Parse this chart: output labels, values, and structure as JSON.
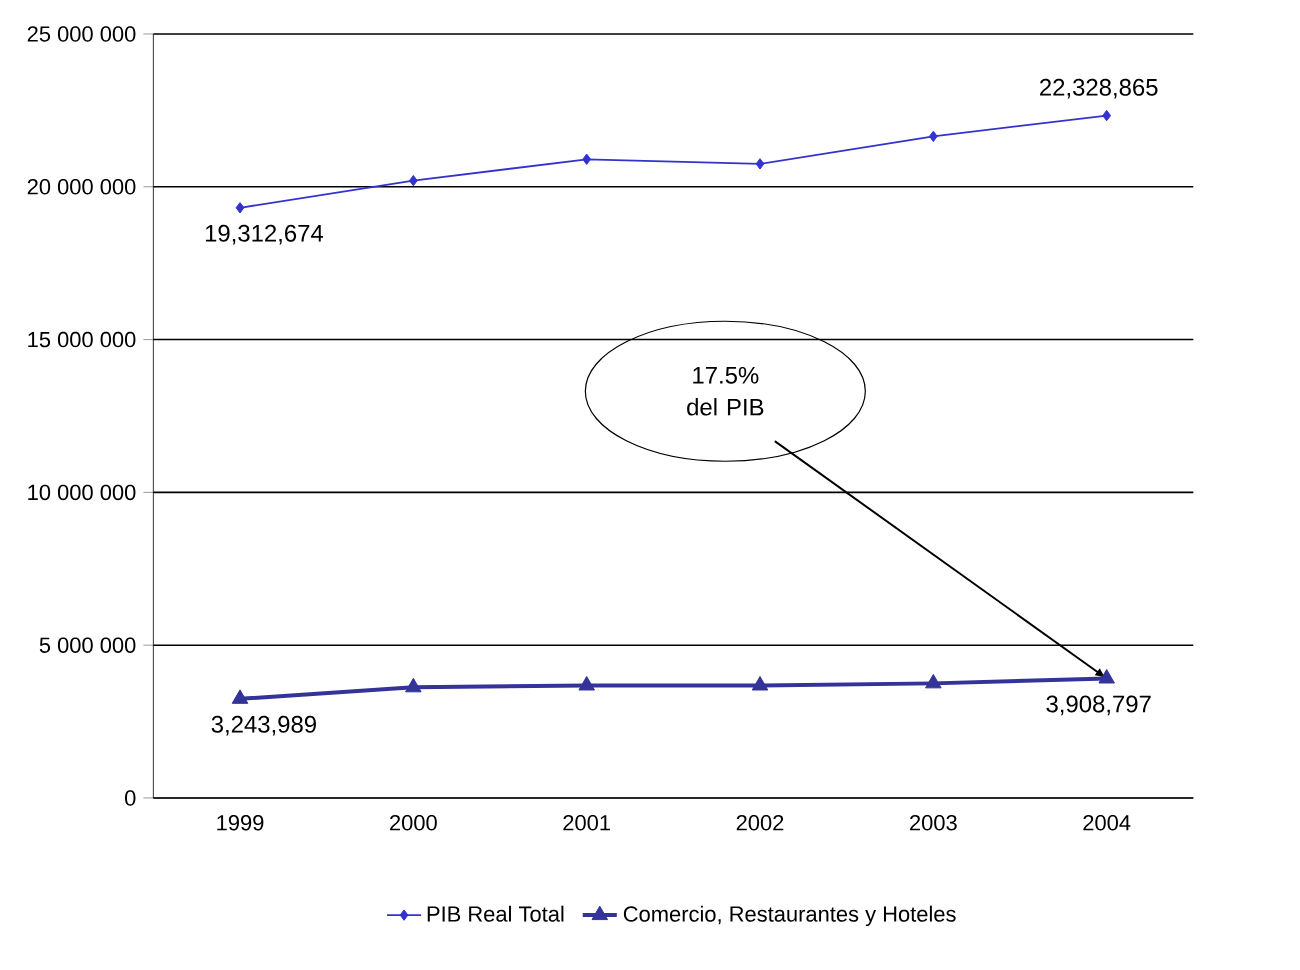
{
  "chart_data": {
    "type": "line",
    "categories": [
      "1999",
      "2000",
      "2001",
      "2002",
      "2003",
      "2004"
    ],
    "series": [
      {
        "name": "PIB Real Total",
        "color": "#3333cc",
        "marker": "diamond",
        "values": [
          19312674,
          20200000,
          20900000,
          20750000,
          21650000,
          22328865
        ],
        "value_labels": [
          "19,312,674",
          null,
          null,
          null,
          null,
          "22,328,865"
        ]
      },
      {
        "name": "Comercio, Restaurantes y Hoteles",
        "color": "#333399",
        "marker": "triangle",
        "values": [
          3243989,
          3620000,
          3680000,
          3680000,
          3750000,
          3908797
        ],
        "value_labels": [
          "3,243,989",
          null,
          null,
          null,
          null,
          "3,908,797"
        ]
      }
    ],
    "ylim": [
      0,
      25000000
    ],
    "yticks": [
      {
        "value": 0,
        "label": "0"
      },
      {
        "value": 5000000,
        "label": "5 000 000"
      },
      {
        "value": 10000000,
        "label": "10 000 000"
      },
      {
        "value": 15000000,
        "label": "15 000 000"
      },
      {
        "value": 20000000,
        "label": "20 000 000"
      },
      {
        "value": 25000000,
        "label": "25 000 000"
      }
    ],
    "grid": "y",
    "legend": "bottom",
    "line_style": "solid",
    "annotations": [
      {
        "text": "17.5% del PIB",
        "x": "2004",
        "y": 3908797
      }
    ]
  }
}
